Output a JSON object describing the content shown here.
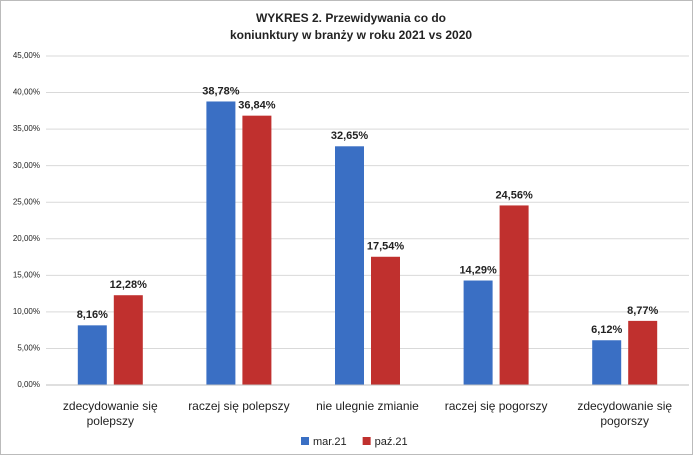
{
  "chart_data": {
    "type": "bar",
    "title": [
      "WYKRES 2. Przewidywania co do",
      "koniunktury w branży w roku 2021 vs 2020"
    ],
    "categories": [
      "zdecydowanie się polepszy",
      "raczej się polepszy",
      "nie ulegnie zmianie",
      "raczej się pogorszy",
      "zdecydowanie się pogorszy"
    ],
    "series": [
      {
        "name": "mar.21",
        "color": "#3a6fc4",
        "values": [
          8.16,
          38.78,
          32.65,
          14.29,
          6.12
        ],
        "value_labels": [
          "8,16%",
          "38,78%",
          "32,65%",
          "14,29%",
          "6,12%"
        ]
      },
      {
        "name": "paź.21",
        "color": "#c0302e",
        "values": [
          12.28,
          36.84,
          17.54,
          24.56,
          8.77
        ],
        "value_labels": [
          "12,28%",
          "36,84%",
          "17,54%",
          "24,56%",
          "8,77%"
        ]
      }
    ],
    "ylim": [
      0,
      45
    ],
    "yticks": [
      {
        "value": 0,
        "label": "0,00%"
      },
      {
        "value": 5,
        "label": "5,00%"
      },
      {
        "value": 10,
        "label": "10,00%"
      },
      {
        "value": 15,
        "label": "15,00%"
      },
      {
        "value": 20,
        "label": "20,00%"
      },
      {
        "value": 25,
        "label": "25,00%"
      },
      {
        "value": 30,
        "label": "30,00%"
      },
      {
        "value": 35,
        "label": "35,00%"
      },
      {
        "value": 40,
        "label": "40,00%"
      },
      {
        "value": 45,
        "label": "45,00%"
      }
    ],
    "grid": true,
    "legend": "bottom"
  }
}
